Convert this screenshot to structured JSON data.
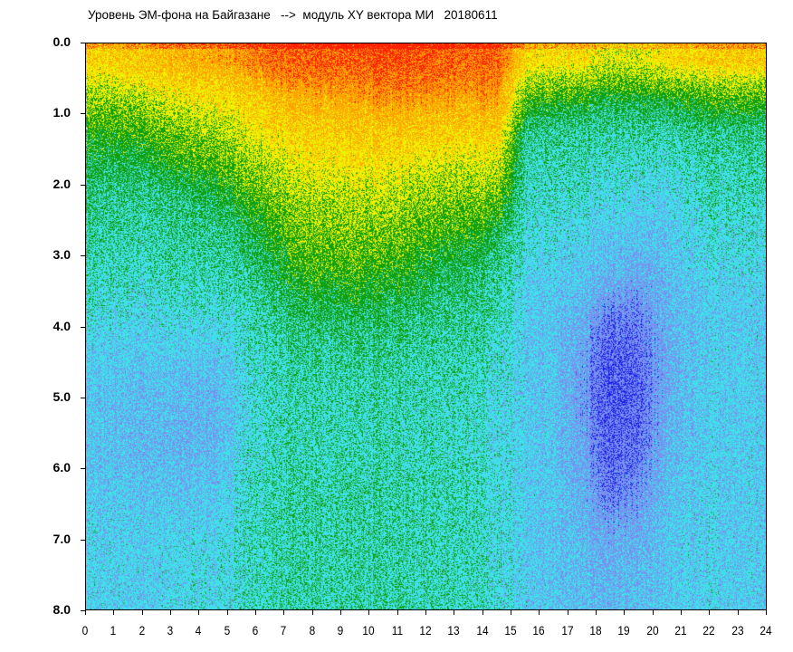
{
  "chart_data": {
    "type": "heatmap",
    "title": "Уровень ЭМ-фона на Байгазане   -->  модуль XY вектора МИ   20180611",
    "x_ticks": [
      "0",
      "1",
      "2",
      "3",
      "4",
      "5",
      "6",
      "7",
      "8",
      "9",
      "10",
      "11",
      "12",
      "13",
      "14",
      "15",
      "16",
      "17",
      "18",
      "19",
      "20",
      "21",
      "22",
      "23",
      "24"
    ],
    "y_ticks": [
      "0.0",
      "1.0",
      "2.0",
      "3.0",
      "4.0",
      "5.0",
      "6.0",
      "7.0",
      "8.0"
    ],
    "xlim": [
      0,
      24
    ],
    "ylim": [
      0,
      8
    ],
    "y_inverted": true,
    "grid": false,
    "colorscale": [
      "#2020e8",
      "#7890f0",
      "#40e0ea",
      "#10a010",
      "#f0f000",
      "#ffa000",
      "#ff2000"
    ],
    "row_step": 0.5,
    "note_values": "relative intensity 0-1 per hour column (rows = y from 0.0 to 8.0 in 0.5 steps)",
    "values": [
      [
        0.72,
        0.6,
        0.5,
        0.45,
        0.4,
        0.38,
        0.36,
        0.34,
        0.3,
        0.28,
        0.27,
        0.27,
        0.28,
        0.3,
        0.3,
        0.3
      ],
      [
        0.75,
        0.62,
        0.52,
        0.45,
        0.4,
        0.38,
        0.36,
        0.33,
        0.3,
        0.27,
        0.26,
        0.26,
        0.28,
        0.3,
        0.3,
        0.3
      ],
      [
        0.78,
        0.65,
        0.55,
        0.47,
        0.4,
        0.38,
        0.36,
        0.33,
        0.3,
        0.27,
        0.25,
        0.25,
        0.27,
        0.3,
        0.3,
        0.3
      ],
      [
        0.8,
        0.68,
        0.58,
        0.5,
        0.42,
        0.4,
        0.37,
        0.34,
        0.3,
        0.26,
        0.24,
        0.24,
        0.27,
        0.3,
        0.32,
        0.32
      ],
      [
        0.82,
        0.7,
        0.6,
        0.52,
        0.45,
        0.4,
        0.37,
        0.34,
        0.3,
        0.25,
        0.24,
        0.25,
        0.28,
        0.3,
        0.32,
        0.32
      ],
      [
        0.85,
        0.72,
        0.65,
        0.58,
        0.5,
        0.44,
        0.4,
        0.36,
        0.34,
        0.32,
        0.32,
        0.33,
        0.34,
        0.35,
        0.35,
        0.35
      ],
      [
        0.9,
        0.78,
        0.7,
        0.62,
        0.55,
        0.5,
        0.45,
        0.4,
        0.37,
        0.36,
        0.36,
        0.36,
        0.37,
        0.37,
        0.37,
        0.37
      ],
      [
        0.92,
        0.8,
        0.72,
        0.66,
        0.6,
        0.55,
        0.5,
        0.44,
        0.4,
        0.38,
        0.37,
        0.37,
        0.38,
        0.38,
        0.38,
        0.38
      ],
      [
        0.93,
        0.82,
        0.74,
        0.68,
        0.62,
        0.57,
        0.52,
        0.46,
        0.4,
        0.38,
        0.37,
        0.37,
        0.38,
        0.38,
        0.38,
        0.38
      ],
      [
        0.93,
        0.82,
        0.74,
        0.68,
        0.62,
        0.57,
        0.52,
        0.46,
        0.41,
        0.38,
        0.37,
        0.37,
        0.38,
        0.38,
        0.38,
        0.38
      ],
      [
        0.95,
        0.84,
        0.75,
        0.68,
        0.62,
        0.56,
        0.5,
        0.45,
        0.4,
        0.38,
        0.37,
        0.37,
        0.38,
        0.38,
        0.38,
        0.38
      ],
      [
        0.95,
        0.85,
        0.75,
        0.67,
        0.6,
        0.55,
        0.5,
        0.44,
        0.4,
        0.38,
        0.37,
        0.37,
        0.38,
        0.38,
        0.38,
        0.38
      ],
      [
        0.93,
        0.84,
        0.74,
        0.66,
        0.58,
        0.52,
        0.46,
        0.42,
        0.39,
        0.38,
        0.37,
        0.37,
        0.38,
        0.38,
        0.38,
        0.38
      ],
      [
        0.9,
        0.82,
        0.72,
        0.64,
        0.56,
        0.5,
        0.44,
        0.4,
        0.38,
        0.36,
        0.35,
        0.35,
        0.36,
        0.36,
        0.36,
        0.36
      ],
      [
        0.92,
        0.85,
        0.75,
        0.65,
        0.55,
        0.45,
        0.4,
        0.38,
        0.36,
        0.34,
        0.33,
        0.33,
        0.34,
        0.34,
        0.34,
        0.34
      ],
      [
        0.72,
        0.55,
        0.42,
        0.38,
        0.36,
        0.34,
        0.32,
        0.3,
        0.3,
        0.3,
        0.3,
        0.3,
        0.3,
        0.3,
        0.3,
        0.3
      ],
      [
        0.7,
        0.52,
        0.4,
        0.37,
        0.35,
        0.33,
        0.3,
        0.28,
        0.28,
        0.28,
        0.28,
        0.28,
        0.28,
        0.28,
        0.28,
        0.28
      ],
      [
        0.7,
        0.5,
        0.4,
        0.36,
        0.34,
        0.3,
        0.28,
        0.24,
        0.2,
        0.18,
        0.18,
        0.2,
        0.22,
        0.24,
        0.26,
        0.26
      ],
      [
        0.65,
        0.48,
        0.38,
        0.34,
        0.32,
        0.28,
        0.24,
        0.15,
        0.1,
        0.08,
        0.08,
        0.1,
        0.12,
        0.18,
        0.22,
        0.25
      ],
      [
        0.65,
        0.48,
        0.38,
        0.34,
        0.3,
        0.26,
        0.2,
        0.15,
        0.12,
        0.1,
        0.1,
        0.12,
        0.15,
        0.2,
        0.24,
        0.25
      ],
      [
        0.7,
        0.5,
        0.38,
        0.34,
        0.3,
        0.28,
        0.26,
        0.24,
        0.22,
        0.22,
        0.22,
        0.24,
        0.26,
        0.28,
        0.28,
        0.28
      ],
      [
        0.72,
        0.52,
        0.4,
        0.36,
        0.34,
        0.32,
        0.3,
        0.28,
        0.28,
        0.28,
        0.28,
        0.28,
        0.3,
        0.3,
        0.3,
        0.3
      ],
      [
        0.75,
        0.55,
        0.42,
        0.38,
        0.36,
        0.34,
        0.32,
        0.3,
        0.3,
        0.3,
        0.3,
        0.3,
        0.3,
        0.3,
        0.3,
        0.3
      ],
      [
        0.75,
        0.55,
        0.42,
        0.38,
        0.36,
        0.34,
        0.32,
        0.3,
        0.3,
        0.3,
        0.3,
        0.3,
        0.3,
        0.3,
        0.3,
        0.3
      ]
    ]
  }
}
